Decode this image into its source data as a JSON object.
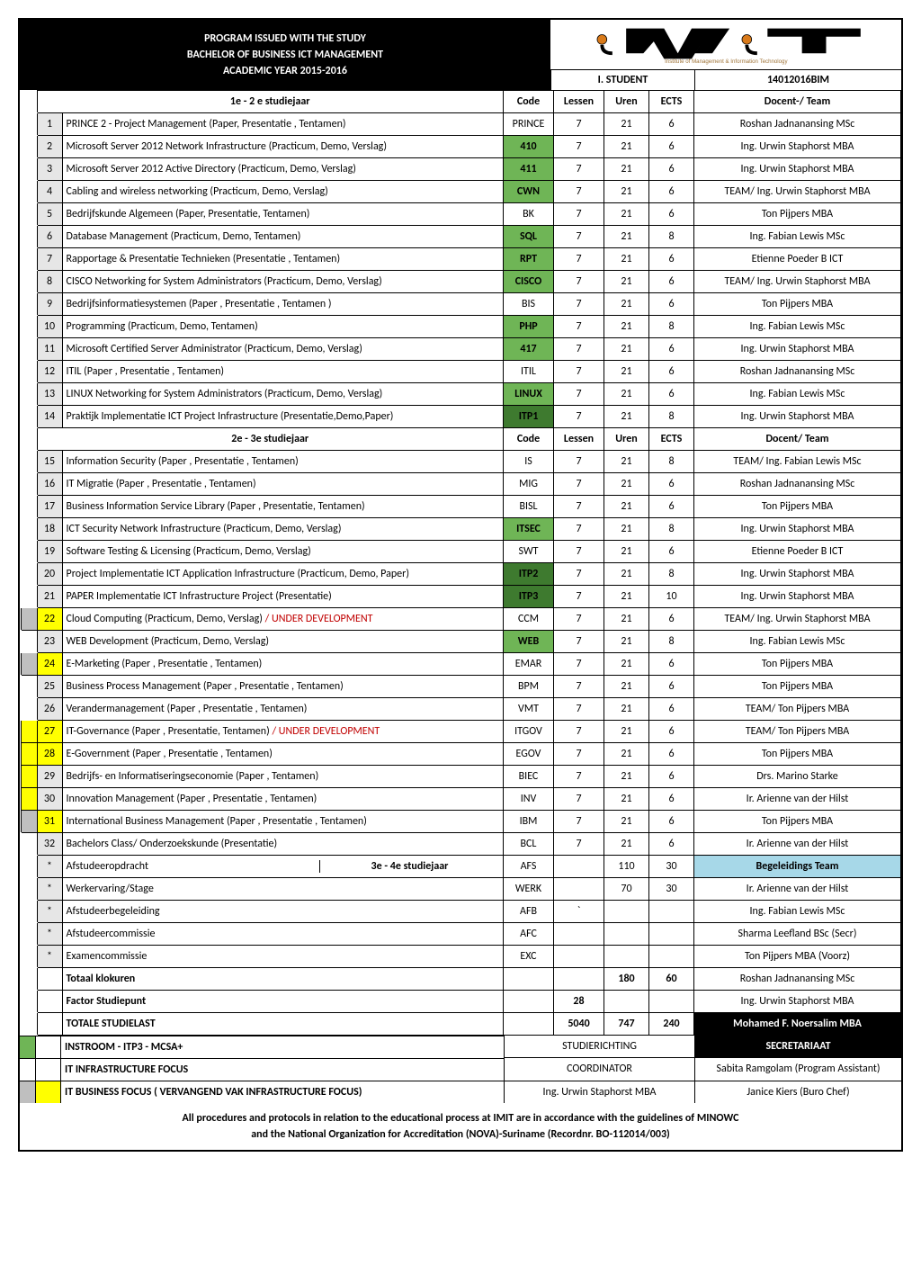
{
  "header": {
    "line1": "PROGRAM ISSUED WITH THE STUDY",
    "line2": "BACHELOR OF BUSINESS ICT MANAGEMENT",
    "line3": "ACADEMIC YEAR 2015-2016",
    "student_label": "I. STUDENT",
    "student_code": "14012016BIM",
    "logo_text": "iMiT",
    "logo_sub": "Institute of Management & Information Technology"
  },
  "colors": {
    "green": "#6fb556",
    "dark_green": "#3e7a2f",
    "yellow": "#ffff00",
    "gray": "#bfbfbf",
    "team_highlight": "#a7d8e8",
    "red_text": "#c00000"
  },
  "columns": {
    "year1": "1e - 2 e  studiejaar",
    "year2": "2e - 3e  studiejaar",
    "code": "Code",
    "lessen": "Lessen",
    "uren": "Uren",
    "ects": "ECTS",
    "team1": "Docent-/ Team",
    "team2": "Docent/ Team"
  },
  "rows1": [
    {
      "mark": "none",
      "n": "1",
      "name": "PRINCE 2 - Project Management (Paper, Presentatie , Tentamen)",
      "code": "PRINCE",
      "cg": "",
      "l": "7",
      "u": "21",
      "e": "6",
      "t": "Roshan Jadnanansing MSc"
    },
    {
      "mark": "none",
      "n": "2",
      "name": "Microsoft Server 2012  Network Infrastructure  (Practicum, Demo, Verslag)",
      "code": "410",
      "cg": "g",
      "l": "7",
      "u": "21",
      "e": "6",
      "t": "Ing. Urwin Staphorst MBA"
    },
    {
      "mark": "none",
      "n": "3",
      "name": "Microsoft Server 2012 Active Directory (Practicum, Demo, Verslag)",
      "code": "411",
      "cg": "g",
      "l": "7",
      "u": "21",
      "e": "6",
      "t": "Ing. Urwin Staphorst MBA"
    },
    {
      "mark": "none",
      "n": "4",
      "name": "Cabling and wireless networking (Practicum, Demo, Verslag)",
      "code": "CWN",
      "cg": "g",
      "l": "7",
      "u": "21",
      "e": "6",
      "t": "TEAM/ Ing. Urwin Staphorst MBA"
    },
    {
      "mark": "none",
      "n": "5",
      "name": "Bedrijfskunde Algemeen (Paper, Presentatie, Tentamen)",
      "code": "BK",
      "cg": "",
      "l": "7",
      "u": "21",
      "e": "6",
      "t": "Ton Pijpers MBA"
    },
    {
      "mark": "none",
      "n": "6",
      "name": "Database Management  (Practicum, Demo, Tentamen)",
      "code": "SQL",
      "cg": "g",
      "l": "7",
      "u": "21",
      "e": "8",
      "t": "Ing. Fabian Lewis MSc"
    },
    {
      "mark": "none",
      "n": "7",
      "name": "Rapportage & Presentatie Technieken (Presentatie , Tentamen)",
      "code": "RPT",
      "cg": "g",
      "l": "7",
      "u": "21",
      "e": "6",
      "t": "Etienne Poeder B ICT"
    },
    {
      "mark": "none",
      "n": "8",
      "name": "CISCO Networking for System Administrators (Practicum, Demo, Verslag)",
      "code": "CISCO",
      "cg": "g",
      "l": "7",
      "u": "21",
      "e": "6",
      "t": "TEAM/ Ing. Urwin Staphorst MBA"
    },
    {
      "mark": "none",
      "n": "9",
      "name": "Bedrijfsinformatiesystemen (Paper , Presentatie , Tentamen )",
      "code": "BIS",
      "cg": "",
      "l": "7",
      "u": "21",
      "e": "6",
      "t": "Ton Pijpers MBA"
    },
    {
      "mark": "none",
      "n": "10",
      "name": "Programming   (Practicum, Demo, Tentamen)",
      "code": "PHP",
      "cg": "g",
      "l": "7",
      "u": "21",
      "e": "8",
      "t": "Ing. Fabian Lewis MSc"
    },
    {
      "mark": "none",
      "n": "11",
      "name": "Microsoft Certified Server Administrator (Practicum, Demo, Verslag)",
      "code": "417",
      "cg": "g",
      "l": "7",
      "u": "21",
      "e": "6",
      "t": "Ing. Urwin Staphorst MBA"
    },
    {
      "mark": "none",
      "n": "12",
      "name": "ITIL (Paper , Presentatie , Tentamen)",
      "code": "ITIL",
      "cg": "",
      "l": "7",
      "u": "21",
      "e": "6",
      "t": "Roshan Jadnanansing MSc"
    },
    {
      "mark": "none",
      "n": "13",
      "name": "LINUX Networking for System Administrators (Practicum, Demo, Verslag)",
      "code": "LINUX",
      "cg": "g",
      "l": "7",
      "u": "21",
      "e": "6",
      "t": "Ing. Fabian Lewis MSc"
    },
    {
      "mark": "none",
      "n": "14",
      "name": "Praktijk Implementatie ICT Project Infrastructure (Presentatie,Demo,Paper)",
      "code": "ITP1",
      "cg": "d",
      "l": "7",
      "u": "21",
      "e": "8",
      "t": "Ing. Urwin Staphorst MBA"
    }
  ],
  "rows2": [
    {
      "mark": "none",
      "n": "15",
      "name": "Information Security (Paper , Presentatie , Tentamen)",
      "code": "IS",
      "cg": "",
      "l": "7",
      "u": "21",
      "e": "8",
      "t": "TEAM/ Ing. Fabian Lewis MSc"
    },
    {
      "mark": "none",
      "n": "16",
      "name": "IT Migratie  (Paper , Presentatie , Tentamen)",
      "code": "MIG",
      "cg": "",
      "l": "7",
      "u": "21",
      "e": "6",
      "t": "Roshan Jadnanansing MSc"
    },
    {
      "mark": "none",
      "n": "17",
      "name": "Business Information Service Library (Paper , Presentatie, Tentamen)",
      "code": "BISL",
      "cg": "",
      "l": "7",
      "u": "21",
      "e": "6",
      "t": "Ton Pijpers MBA"
    },
    {
      "mark": "none",
      "n": "18",
      "name": "ICT Security Network Infrastructure (Practicum, Demo, Verslag)",
      "code": "ITSEC",
      "cg": "g",
      "l": "7",
      "u": "21",
      "e": "8",
      "t": "Ing. Urwin Staphorst MBA"
    },
    {
      "mark": "none",
      "n": "19",
      "name": "Software Testing & Licensing (Practicum, Demo, Verslag)",
      "code": "SWT",
      "cg": "",
      "l": "7",
      "u": "21",
      "e": "6",
      "t": "Etienne Poeder B ICT"
    },
    {
      "mark": "none",
      "n": "20",
      "name": "Project Implementatie ICT Application Infrastructure (Practicum, Demo, Paper)",
      "code": "ITP2",
      "cg": "d",
      "l": "7",
      "u": "21",
      "e": "8",
      "t": "Ing. Urwin Staphorst MBA"
    },
    {
      "mark": "none",
      "n": "21",
      "name": "PAPER Implementatie ICT Infrastructure Project (Presentatie)",
      "code": "ITP3",
      "cg": "d",
      "l": "7",
      "u": "21",
      "e": "10",
      "t": "Ing. Urwin Staphorst MBA"
    },
    {
      "mark": "gray",
      "n": "22",
      "ny": "1",
      "name": "Cloud Computing (Practicum, Demo, Verslag)",
      "suffix": "/ UNDER DEVELOPMENT",
      "code": "CCM",
      "cg": "",
      "l": "7",
      "u": "21",
      "e": "6",
      "t": "TEAM/ Ing. Urwin Staphorst MBA"
    },
    {
      "mark": "none",
      "n": "23",
      "name": "WEB Development (Practicum, Demo, Verslag)",
      "code": "WEB",
      "cg": "g",
      "l": "7",
      "u": "21",
      "e": "8",
      "t": "Ing. Fabian Lewis MSc"
    },
    {
      "mark": "gray",
      "n": "24",
      "ny": "1",
      "name": "E-Marketing (Paper , Presentatie , Tentamen)",
      "code": "EMAR",
      "cg": "",
      "l": "7",
      "u": "21",
      "e": "6",
      "t": "Ton Pijpers MBA"
    },
    {
      "mark": "none",
      "n": "25",
      "name": "Business Process Management  (Paper , Presentatie , Tentamen)",
      "code": "BPM",
      "cg": "",
      "l": "7",
      "u": "21",
      "e": "6",
      "t": "Ton Pijpers MBA"
    },
    {
      "mark": "none",
      "n": "26",
      "name": "Verandermanagement (Paper , Presentatie , Tentamen)",
      "code": "VMT",
      "cg": "",
      "l": "7",
      "u": "21",
      "e": "6",
      "t": "TEAM/ Ton Pijpers MBA"
    },
    {
      "mark": "yellow",
      "n": "27",
      "ny": "1",
      "name": "IT-Governance  (Paper , Presentatie, Tentamen) ",
      "suffix": "/ UNDER DEVELOPMENT",
      "code": "ITGOV",
      "cg": "",
      "l": "7",
      "u": "21",
      "e": "6",
      "t": "TEAM/ Ton Pijpers MBA"
    },
    {
      "mark": "yellow",
      "n": "28",
      "ny": "1",
      "name": "E-Government  (Paper , Presentatie , Tentamen)",
      "code": "EGOV",
      "cg": "",
      "l": "7",
      "u": "21",
      "e": "6",
      "t": "Ton Pijpers MBA"
    },
    {
      "mark": "yellow",
      "n": "29",
      "name": "Bedrijfs- en Informatiseringseconomie (Paper , Tentamen)",
      "code": "BIEC",
      "cg": "",
      "l": "7",
      "u": "21",
      "e": "6",
      "t": "Drs. Marino Starke"
    },
    {
      "mark": "yellow",
      "n": "30",
      "name": "Innovation Management  (Paper , Presentatie , Tentamen)",
      "code": "INV",
      "cg": "",
      "l": "7",
      "u": "21",
      "e": "6",
      "t": "Ir. Arienne van der Hilst"
    },
    {
      "mark": "gray",
      "n": "31",
      "ny": "1",
      "name": "International Business Management  (Paper , Presentatie , Tentamen)",
      "code": "IBM",
      "cg": "",
      "l": "7",
      "u": "21",
      "e": "6",
      "t": "Ton Pijpers MBA"
    },
    {
      "mark": "none",
      "n": "32",
      "name": "Bachelors Class/ Onderzoekskunde (Presentatie)",
      "code": "BCL",
      "cg": "",
      "l": "7",
      "u": "21",
      "e": "6",
      "t": "Ir. Arienne van der Hilst"
    }
  ],
  "rows3": [
    {
      "n": "*",
      "name": "Afstudeeropdracht",
      "split": "3e - 4e  studiejaar",
      "code": "AFS",
      "l": "",
      "u": "110",
      "e": "30",
      "t": "Begeleidings Team",
      "th": "1"
    },
    {
      "n": "*",
      "name": "Werkervaring/Stage",
      "code": "WERK",
      "l": "",
      "u": "70",
      "e": "30",
      "t": "Ir. Arienne van der Hilst"
    },
    {
      "n": "*",
      "name": "Afstudeerbegeleiding",
      "code": "AFB",
      "l": "`",
      "u": "",
      "e": "",
      "t": "Ing. Fabian Lewis MSc"
    },
    {
      "n": "*",
      "name": "Afstudeercommissie",
      "code": "AFC",
      "l": "",
      "u": "",
      "e": "",
      "t": "Sharma Leefland BSc (Secr)"
    },
    {
      "n": "*",
      "name": "Examencommissie",
      "code": "EXC",
      "l": "",
      "u": "",
      "e": "",
      "t": "Ton Pijpers MBA (Voorz)"
    }
  ],
  "totals": [
    {
      "name": "Totaal klokuren",
      "code": "",
      "l": "",
      "u": "180",
      "e": "60",
      "t": "Roshan Jadnanansing MSc"
    },
    {
      "name": "Factor Studiepunt",
      "code": "",
      "l": "28",
      "u": "",
      "e": "",
      "t": "Ing. Urwin Staphorst MBA"
    },
    {
      "name": "TOTALE STUDIELAST",
      "code": "",
      "l": "5040",
      "u": "747",
      "e": "240",
      "t": "Mohamed F. Noersalim MBA",
      "blkt": "1"
    }
  ],
  "legend": {
    "l1": "INSTROOM - ITP3 - MCSA+",
    "l2": "IT INFRASTRUCTURE FOCUS",
    "l3": "IT BUSINESS FOCUS ( VERVANGEND VAK INFRASTRUCTURE FOCUS)"
  },
  "footer_mid": {
    "a": "STUDIERICHTING",
    "b": "COORDINATOR",
    "c": "Ing. Urwin Staphorst MBA"
  },
  "footer_right": {
    "a": "SECRETARIAAT",
    "b": "Sabita Ramgolam (Program Assistant)",
    "c": "Janice Kiers (Buro Chef)"
  },
  "disclaimer": {
    "d1": "All procedures and protocols in relation to the educational process at IMIT are in accordance with the guidelines of  MINOWC",
    "d2": "and the National Organization for Accreditation (NOVA)-Suriname (Recordnr. BO-112014/003)"
  }
}
